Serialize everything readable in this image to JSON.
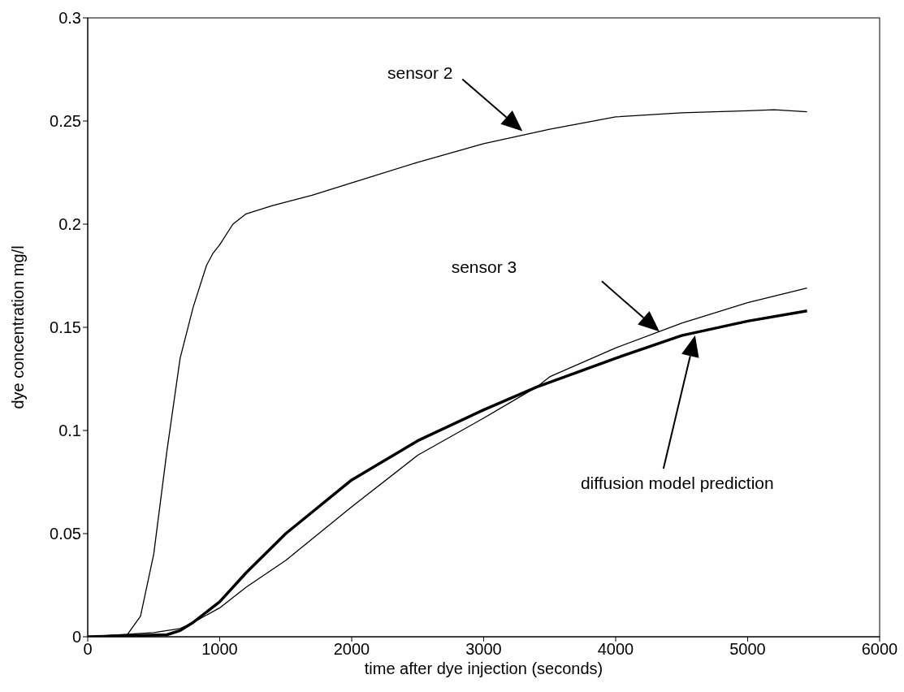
{
  "chart_data": {
    "type": "line",
    "xlabel": "time after dye injection (seconds)",
    "ylabel": "dye concentration mg/l",
    "xlim": [
      0,
      6000
    ],
    "xticks": [
      0,
      1000,
      2000,
      3000,
      4000,
      5000,
      6000
    ],
    "ylim": [
      0,
      0.3
    ],
    "yticks": [
      0,
      0.05,
      0.1,
      0.15,
      0.2,
      0.25,
      0.3
    ],
    "grid": false,
    "marker": "none",
    "line_style": "solid",
    "series": [
      {
        "color": "#000000",
        "x": [
          0,
          300,
          400,
          500,
          600,
          700,
          800,
          900,
          950,
          1000,
          1100,
          1200,
          1400,
          1700,
          2000,
          2500,
          3000,
          3500,
          4000,
          4500,
          5000,
          5200,
          5450
        ],
        "values": [
          0,
          0.001,
          0.01,
          0.04,
          0.09,
          0.135,
          0.16,
          0.18,
          0.186,
          0.19,
          0.2,
          0.205,
          0.209,
          0.214,
          0.22,
          0.23,
          0.239,
          0.246,
          0.252,
          0.254,
          0.255,
          0.2555,
          0.2545
        ]
      },
      {
        "color": "#000000",
        "x": [
          0,
          500,
          700,
          800,
          1000,
          1200,
          1500,
          2000,
          2500,
          3000,
          3400,
          3500,
          4000,
          4500,
          5000,
          5450
        ],
        "values": [
          0,
          0.002,
          0.004,
          0.007,
          0.014,
          0.024,
          0.037,
          0.063,
          0.088,
          0.106,
          0.121,
          0.126,
          0.14,
          0.152,
          0.162,
          0.169
        ]
      },
      {
        "color": "#000000",
        "x": [
          0,
          600,
          700,
          800,
          1000,
          1200,
          1500,
          2000,
          2500,
          3000,
          3400,
          4000,
          4500,
          5000,
          5450
        ],
        "values": [
          0,
          0.001,
          0.003,
          0.007,
          0.017,
          0.031,
          0.05,
          0.076,
          0.095,
          0.11,
          0.121,
          0.135,
          0.146,
          0.153,
          0.158
        ]
      }
    ],
    "annotations": [
      "sensor 2",
      "sensor 3",
      "diffusion model prediction"
    ]
  }
}
